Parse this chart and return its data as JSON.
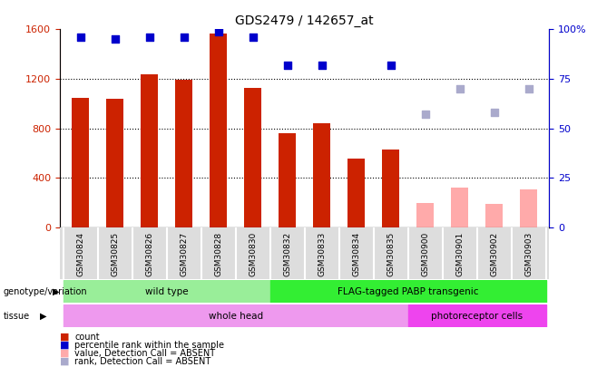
{
  "title": "GDS2479 / 142657_at",
  "samples": [
    "GSM30824",
    "GSM30825",
    "GSM30826",
    "GSM30827",
    "GSM30828",
    "GSM30830",
    "GSM30832",
    "GSM30833",
    "GSM30834",
    "GSM30835",
    "GSM30900",
    "GSM30901",
    "GSM30902",
    "GSM30903"
  ],
  "counts": [
    1050,
    1040,
    1240,
    1190,
    1570,
    1130,
    760,
    840,
    560,
    630,
    null,
    null,
    null,
    null
  ],
  "counts_absent": [
    null,
    null,
    null,
    null,
    null,
    null,
    null,
    null,
    null,
    null,
    200,
    320,
    190,
    310
  ],
  "percentile_rank": [
    96,
    95,
    96,
    96,
    99,
    96,
    82,
    82,
    null,
    82,
    null,
    null,
    null,
    null
  ],
  "percentile_rank_absent": [
    null,
    null,
    null,
    null,
    null,
    null,
    null,
    null,
    null,
    null,
    57,
    70,
    58,
    70
  ],
  "count_color": "#cc2200",
  "count_absent_color": "#ffaaaa",
  "rank_color": "#0000cc",
  "rank_absent_color": "#aaaacc",
  "ylim_left": [
    0,
    1600
  ],
  "ylim_right": [
    0,
    100
  ],
  "yticks_left": [
    0,
    400,
    800,
    1200,
    1600
  ],
  "yticks_right": [
    0,
    25,
    50,
    75,
    100
  ],
  "yticklabels_right": [
    "0",
    "25",
    "50",
    "75",
    "100%"
  ],
  "genotype_groups": [
    {
      "label": "wild type",
      "start": 0,
      "end": 6,
      "color": "#99ee99"
    },
    {
      "label": "FLAG-tagged PABP transgenic",
      "start": 6,
      "end": 14,
      "color": "#33ee33"
    }
  ],
  "tissue_groups": [
    {
      "label": "whole head",
      "start": 0,
      "end": 10,
      "color": "#ee99ee"
    },
    {
      "label": "photoreceptor cells",
      "start": 10,
      "end": 14,
      "color": "#ee44ee"
    }
  ],
  "legend_items": [
    {
      "label": "count",
      "color": "#cc2200"
    },
    {
      "label": "percentile rank within the sample",
      "color": "#0000cc"
    },
    {
      "label": "value, Detection Call = ABSENT",
      "color": "#ffaaaa"
    },
    {
      "label": "rank, Detection Call = ABSENT",
      "color": "#aaaacc"
    }
  ],
  "bar_width": 0.5,
  "marker_size": 6,
  "background_color": "#ffffff",
  "plot_bg_color": "#ffffff",
  "grid_color": "#000000",
  "tick_color_left": "#cc2200",
  "tick_color_right": "#0000cc"
}
